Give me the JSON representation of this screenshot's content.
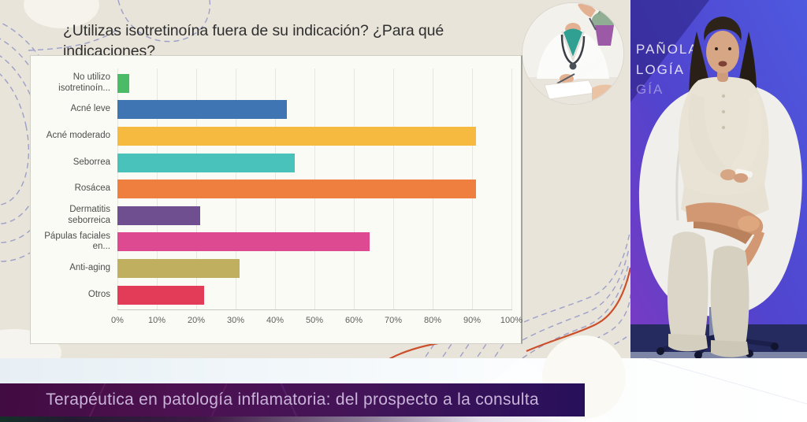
{
  "slide": {
    "title": "¿Utilizas isotretinoína fuera de su indicación? ¿Para qué indicaciones?"
  },
  "chart_data": {
    "type": "bar",
    "orientation": "horizontal",
    "categories": [
      "No utilizo isotretinoín...",
      "Acné leve",
      "Acné moderado",
      "Seborrea",
      "Rosácea",
      "Dermatitis seborreica",
      "Pápulas faciales en...",
      "Anti-aging",
      "Otros"
    ],
    "values": [
      3,
      43,
      91,
      45,
      91,
      21,
      64,
      31,
      22
    ],
    "unit": "%",
    "colors": [
      "#4CBB68",
      "#3F75B3",
      "#F6BA40",
      "#4AC2BC",
      "#EF7F3E",
      "#6F4F90",
      "#DE4A92",
      "#C0AF5E",
      "#E23C58"
    ],
    "x_ticks": [
      "0%",
      "10%",
      "20%",
      "30%",
      "40%",
      "50%",
      "60%",
      "70%",
      "80%",
      "90%",
      "100%"
    ],
    "xlim": [
      0,
      100
    ],
    "grid": true,
    "legend": false,
    "title": "¿Utilizas isotretinoína fuera de su indicación? ¿Para qué indicaciones?"
  },
  "video": {
    "wall_text": [
      "PAÑOLA",
      "LOGÍA",
      "GÍA"
    ]
  },
  "banner": {
    "text": "Terapéutica en patología inflamatoria: del prospecto a la consulta"
  },
  "images": {
    "doctor_photo": "doctor-writing-consultation-photo",
    "speaker_video": "speaker-seated-on-stage-video"
  },
  "accent_colors": {
    "slide_background": "#E8E4DA",
    "banner_left": "#410C41",
    "banner_right": "#27105A",
    "video_wall_blue": "#4C46CC",
    "decor_dash": "#9094C6",
    "decor_orange": "#CC4F2B"
  }
}
